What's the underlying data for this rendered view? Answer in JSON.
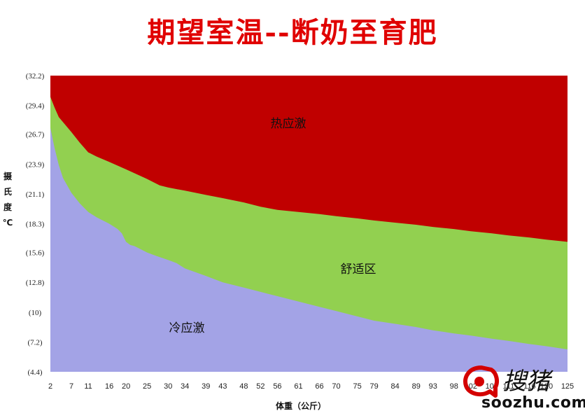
{
  "chart_data": {
    "type": "area",
    "title": "期望室温--断奶至育肥",
    "xlabel": "体重（公斤）",
    "ylabel": "摄氏度℃",
    "x": [
      2,
      7,
      11,
      16,
      20,
      25,
      30,
      34,
      39,
      43,
      48,
      52,
      56,
      61,
      66,
      70,
      75,
      79,
      84,
      89,
      93,
      98,
      102,
      107,
      111,
      116,
      120,
      125
    ],
    "x_tick_labels": [
      "2",
      "7",
      "11",
      "16",
      "20",
      "25",
      "30",
      "34",
      "39",
      "43",
      "48",
      "52",
      "56",
      "61",
      "66",
      "70",
      "75",
      "79",
      "84",
      "89",
      "93",
      "98",
      "102",
      "107",
      "111",
      "116",
      "120",
      "125"
    ],
    "y_tick_labels": [
      "(4.4)",
      "(7.2)",
      "(10)",
      "(12.8)",
      "(15.6)",
      "(18.3)",
      "(21.1)",
      "(23.9)",
      "(26.7)",
      "(29.4)",
      "(32.2)"
    ],
    "y_tick_values": [
      4.4,
      7.2,
      10,
      12.8,
      15.6,
      18.3,
      21.1,
      23.9,
      26.7,
      29.4,
      32.2
    ],
    "ylim": [
      4.4,
      32.2
    ],
    "grid": false,
    "series": [
      {
        "name": "冷应激",
        "color": "#a3a3e6",
        "upper_boundary": [
          [
            2,
            27.3
          ],
          [
            3,
            25.4
          ],
          [
            4,
            23.8
          ],
          [
            5,
            22.6
          ],
          [
            7,
            21.2
          ],
          [
            9,
            20.2
          ],
          [
            11,
            19.4
          ],
          [
            13,
            18.9
          ],
          [
            16,
            18.3
          ],
          [
            18,
            17.8
          ],
          [
            19,
            17.4
          ],
          [
            20,
            16.6
          ],
          [
            21,
            16.3
          ],
          [
            22,
            16.2
          ],
          [
            23,
            16.0
          ],
          [
            25,
            15.6
          ],
          [
            27,
            15.3
          ],
          [
            30,
            14.9
          ],
          [
            32,
            14.6
          ],
          [
            34,
            14.1
          ],
          [
            39,
            13.4
          ],
          [
            43,
            12.8
          ],
          [
            48,
            12.3
          ],
          [
            52,
            11.9
          ],
          [
            56,
            11.5
          ],
          [
            61,
            11.0
          ],
          [
            66,
            10.5
          ],
          [
            70,
            10.1
          ],
          [
            75,
            9.6
          ],
          [
            79,
            9.2
          ],
          [
            84,
            8.9
          ],
          [
            89,
            8.6
          ],
          [
            93,
            8.3
          ],
          [
            98,
            8.0
          ],
          [
            102,
            7.8
          ],
          [
            107,
            7.5
          ],
          [
            111,
            7.3
          ],
          [
            116,
            7.0
          ],
          [
            120,
            6.8
          ],
          [
            125,
            6.5
          ]
        ]
      },
      {
        "name": "舒适区",
        "color": "#92d050",
        "upper_boundary": [
          [
            2,
            30.2
          ],
          [
            3,
            29.2
          ],
          [
            4,
            28.3
          ],
          [
            7,
            26.9
          ],
          [
            9,
            25.9
          ],
          [
            11,
            25.0
          ],
          [
            13,
            24.6
          ],
          [
            16,
            24.1
          ],
          [
            20,
            23.4
          ],
          [
            25,
            22.5
          ],
          [
            28,
            21.9
          ],
          [
            30,
            21.7
          ],
          [
            34,
            21.4
          ],
          [
            39,
            21.0
          ],
          [
            43,
            20.7
          ],
          [
            48,
            20.3
          ],
          [
            52,
            19.9
          ],
          [
            56,
            19.6
          ],
          [
            61,
            19.4
          ],
          [
            66,
            19.2
          ],
          [
            70,
            19.0
          ],
          [
            75,
            18.8
          ],
          [
            79,
            18.6
          ],
          [
            84,
            18.4
          ],
          [
            89,
            18.2
          ],
          [
            93,
            18.0
          ],
          [
            98,
            17.8
          ],
          [
            102,
            17.6
          ],
          [
            107,
            17.4
          ],
          [
            111,
            17.2
          ],
          [
            116,
            17.0
          ],
          [
            120,
            16.8
          ],
          [
            125,
            16.6
          ]
        ]
      },
      {
        "name": "热应激",
        "color": "#c00000",
        "upper_boundary": [
          [
            2,
            32.2
          ],
          [
            125,
            32.2
          ]
        ]
      }
    ]
  },
  "watermark": {
    "text": "soozhu.com",
    "brand": "搜猪"
  }
}
